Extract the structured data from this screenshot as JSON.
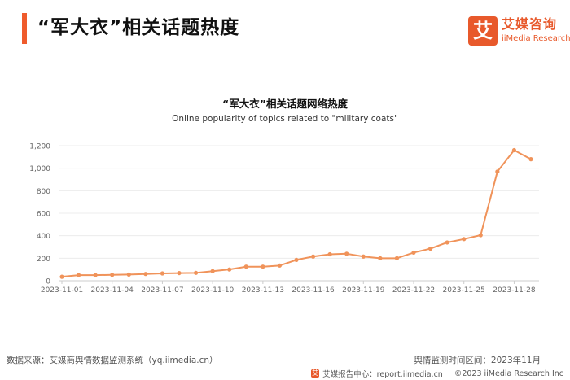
{
  "header": {
    "title": "“军大衣”相关话题热度"
  },
  "logo": {
    "mark": "艾",
    "name_cn": "艾媒咨询",
    "name_en": "iiMedia Research"
  },
  "chart_data": {
    "type": "line",
    "title": "“军大衣”相关话题网络热度",
    "subtitle": "Online popularity of topics related to \"military coats\"",
    "x": [
      "2023-11-01",
      "2023-11-02",
      "2023-11-03",
      "2023-11-04",
      "2023-11-05",
      "2023-11-06",
      "2023-11-07",
      "2023-11-08",
      "2023-11-09",
      "2023-11-10",
      "2023-11-11",
      "2023-11-12",
      "2023-11-13",
      "2023-11-14",
      "2023-11-15",
      "2023-11-16",
      "2023-11-17",
      "2023-11-18",
      "2023-11-19",
      "2023-11-20",
      "2023-11-21",
      "2023-11-22",
      "2023-11-23",
      "2023-11-24",
      "2023-11-25",
      "2023-11-26",
      "2023-11-27",
      "2023-11-28",
      "2023-11-29"
    ],
    "x_tick_labels": [
      "2023-11-01",
      "2023-11-04",
      "2023-11-07",
      "2023-11-10",
      "2023-11-13",
      "2023-11-16",
      "2023-11-19",
      "2023-11-22",
      "2023-11-25",
      "2023-11-28"
    ],
    "x_tick_indices": [
      0,
      3,
      6,
      9,
      12,
      15,
      18,
      21,
      24,
      27
    ],
    "series": [
      {
        "values": [
          35,
          50,
          50,
          52,
          55,
          60,
          65,
          68,
          70,
          85,
          100,
          125,
          125,
          135,
          185,
          215,
          235,
          240,
          215,
          200,
          200,
          250,
          285,
          340,
          370,
          405,
          970,
          1160,
          1080
        ]
      }
    ],
    "ylim": [
      0,
      1200
    ],
    "yticks": [
      0,
      200,
      400,
      600,
      800,
      1000,
      1200
    ],
    "ytick_labels": [
      "0",
      "200",
      "400",
      "600",
      "800",
      "1,000",
      "1,200"
    ],
    "grid": "horizontal",
    "line_color": "#f0935a",
    "axis_color": "#cccccc",
    "grid_color": "#ececec"
  },
  "footer": {
    "source": "数据来源：艾媒商舆情数据监测系统（yq.iimedia.cn）",
    "period": "舆情监测时间区间：2023年11月",
    "report_site": "艾媒报告中心：report.iimedia.cn",
    "copyright": "©2023  iiMedia Research Inc"
  },
  "colors": {
    "accent": "#e8592b"
  }
}
